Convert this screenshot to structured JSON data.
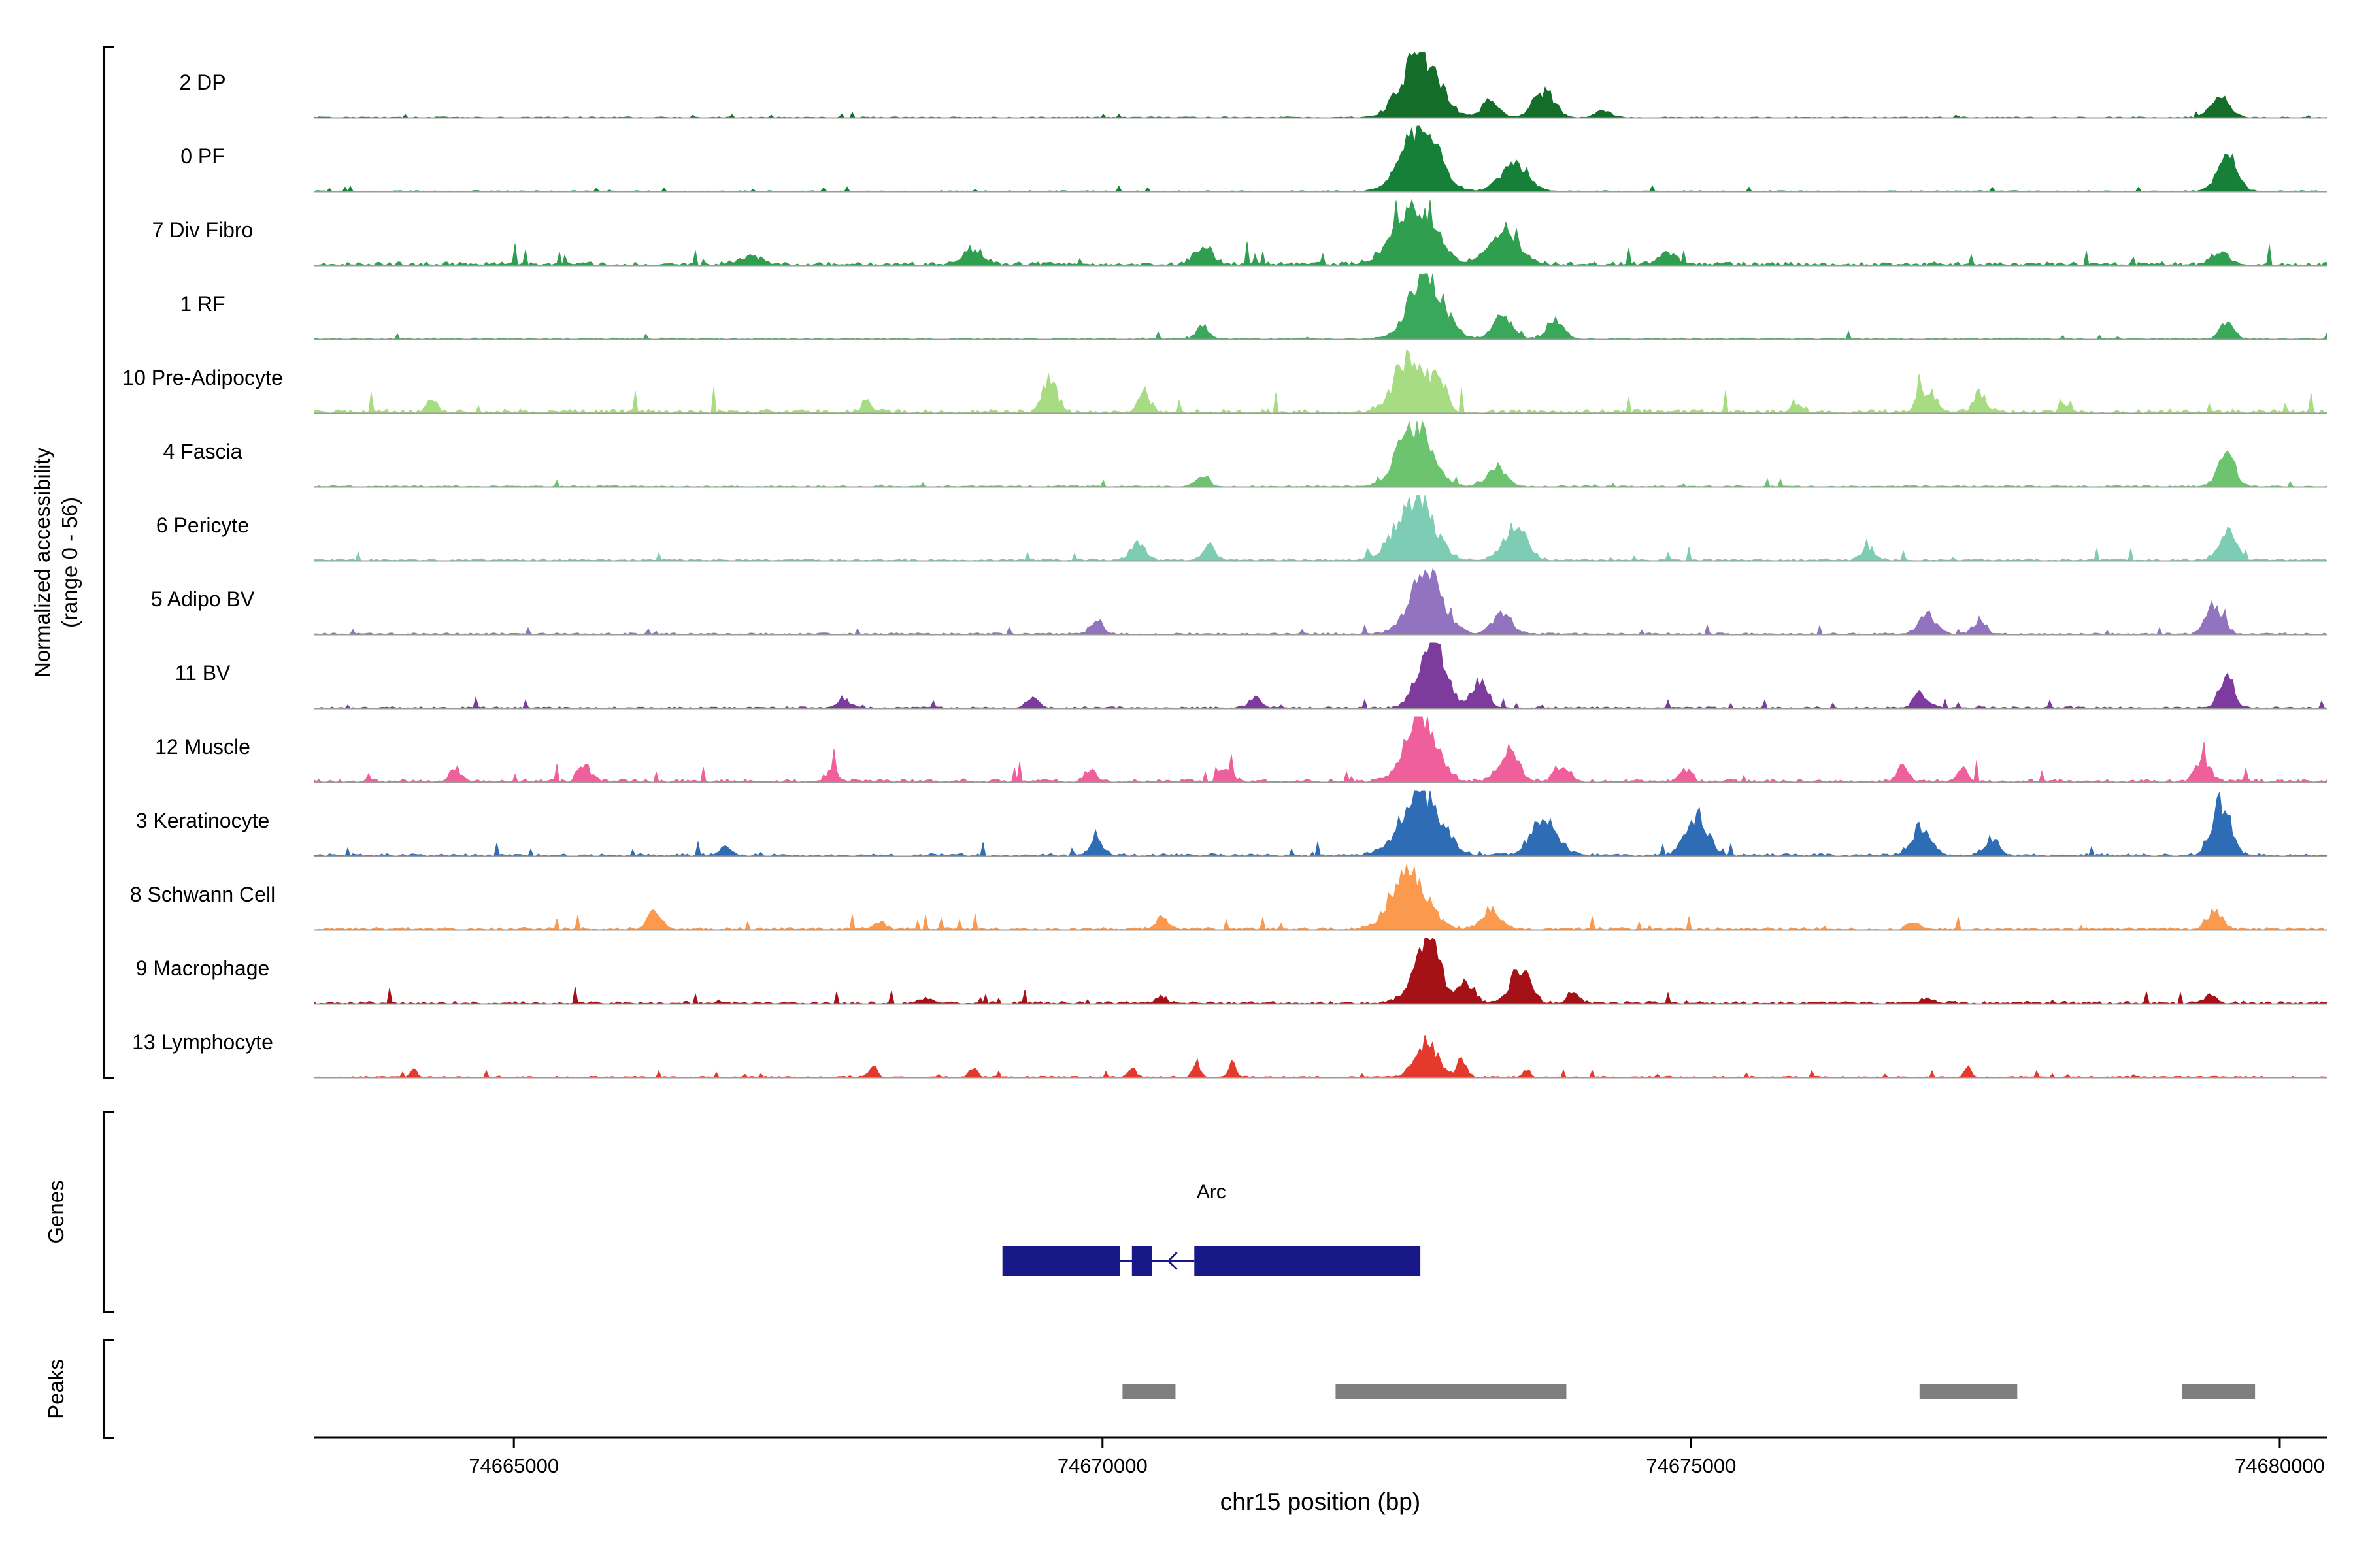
{
  "y_axis": {
    "label_line1": "Normalized accessibility",
    "label_line2": "(range 0 - 56)"
  },
  "x_axis": {
    "label": "chr15 position (bp)",
    "ticks": [
      74665000,
      74670000,
      74675000,
      74680000
    ]
  },
  "sections": {
    "genes_label": "Genes",
    "peaks_label": "Peaks"
  },
  "chart_data": {
    "type": "area",
    "x_range_bp": [
      74663300,
      74680400
    ],
    "y_range": [
      0,
      56
    ],
    "xlabel": "chr15 position (bp)",
    "tracks": [
      {
        "name": "2 DP",
        "color": "#156d2a",
        "noise": 0.02,
        "bumps": [
          [
            74672700,
            1.0,
            150
          ],
          [
            74673300,
            0.28,
            70
          ],
          [
            74673750,
            0.4,
            90
          ],
          [
            74674250,
            0.12,
            60
          ],
          [
            74679500,
            0.3,
            80
          ]
        ]
      },
      {
        "name": "0 PF",
        "color": "#168039",
        "noise": 0.02,
        "bumps": [
          [
            74672700,
            1.0,
            150
          ],
          [
            74673500,
            0.45,
            110
          ],
          [
            74679550,
            0.55,
            80
          ]
        ]
      },
      {
        "name": "7 Div Fibro",
        "color": "#2f9e4f",
        "noise": 0.09,
        "bumps": [
          [
            74672650,
            0.92,
            170
          ],
          [
            74673400,
            0.5,
            120
          ],
          [
            74670850,
            0.3,
            70
          ],
          [
            74668900,
            0.22,
            80
          ],
          [
            74667000,
            0.12,
            90
          ],
          [
            74674800,
            0.15,
            70
          ],
          [
            74679500,
            0.18,
            70
          ]
        ]
      },
      {
        "name": "1 RF",
        "color": "#3aa85a",
        "noise": 0.03,
        "bumps": [
          [
            74672750,
            1.0,
            140
          ],
          [
            74673400,
            0.32,
            80
          ],
          [
            74673850,
            0.3,
            70
          ],
          [
            74670850,
            0.2,
            50
          ],
          [
            74679550,
            0.22,
            60
          ]
        ]
      },
      {
        "name": "10 Pre-Adipocyte",
        "color": "#a8dc82",
        "noise": 0.1,
        "bumps": [
          [
            74672600,
            0.8,
            120
          ],
          [
            74672850,
            0.55,
            60
          ],
          [
            74669550,
            0.5,
            60
          ],
          [
            74670350,
            0.3,
            50
          ],
          [
            74664300,
            0.16,
            40
          ],
          [
            74668000,
            0.14,
            50
          ],
          [
            74675900,
            0.14,
            50
          ],
          [
            74677000,
            0.32,
            70
          ],
          [
            74677450,
            0.26,
            50
          ],
          [
            74678200,
            0.12,
            40
          ]
        ]
      },
      {
        "name": "4 Fascia",
        "color": "#6cc46f",
        "noise": 0.03,
        "bumps": [
          [
            74672650,
            0.92,
            140
          ],
          [
            74673350,
            0.32,
            80
          ],
          [
            74670850,
            0.18,
            50
          ],
          [
            74679550,
            0.5,
            70
          ]
        ]
      },
      {
        "name": "6 Pericyte",
        "color": "#7dccb4",
        "noise": 0.05,
        "bumps": [
          [
            74672650,
            0.95,
            150
          ],
          [
            74673500,
            0.48,
            100
          ],
          [
            74670300,
            0.28,
            60
          ],
          [
            74670900,
            0.22,
            50
          ],
          [
            74676500,
            0.16,
            60
          ],
          [
            74679550,
            0.45,
            70
          ]
        ]
      },
      {
        "name": "5 Adipo BV",
        "color": "#9173c0",
        "noise": 0.04,
        "bumps": [
          [
            74672750,
            0.9,
            140
          ],
          [
            74673400,
            0.3,
            80
          ],
          [
            74669950,
            0.22,
            50
          ],
          [
            74677000,
            0.3,
            70
          ],
          [
            74677450,
            0.22,
            50
          ],
          [
            74679450,
            0.42,
            70
          ]
        ]
      },
      {
        "name": "11 BV",
        "color": "#7d3b9e",
        "noise": 0.04,
        "bumps": [
          [
            74672800,
            1.0,
            110
          ],
          [
            74673200,
            0.4,
            70
          ],
          [
            74667800,
            0.14,
            50
          ],
          [
            74669400,
            0.18,
            50
          ],
          [
            74671300,
            0.18,
            50
          ],
          [
            74676950,
            0.22,
            60
          ],
          [
            74679550,
            0.48,
            60
          ]
        ]
      },
      {
        "name": "12 Muscle",
        "color": "#ef5f9c",
        "noise": 0.08,
        "bumps": [
          [
            74672700,
            0.95,
            130
          ],
          [
            74673450,
            0.38,
            90
          ],
          [
            74673900,
            0.25,
            60
          ],
          [
            74664500,
            0.18,
            50
          ],
          [
            74665600,
            0.22,
            50
          ],
          [
            74667700,
            0.16,
            50
          ],
          [
            74669900,
            0.18,
            50
          ],
          [
            74671050,
            0.22,
            50
          ],
          [
            74674950,
            0.18,
            50
          ],
          [
            74676800,
            0.22,
            50
          ],
          [
            74677300,
            0.16,
            50
          ],
          [
            74679350,
            0.32,
            60
          ]
        ]
      },
      {
        "name": "3 Keratinocyte",
        "color": "#2e6db5",
        "noise": 0.06,
        "bumps": [
          [
            74672700,
            1.0,
            160
          ],
          [
            74673750,
            0.52,
            110
          ],
          [
            74675050,
            0.58,
            90
          ],
          [
            74669950,
            0.22,
            60
          ],
          [
            74666800,
            0.1,
            60
          ],
          [
            74676950,
            0.42,
            80
          ],
          [
            74677550,
            0.25,
            60
          ],
          [
            74679500,
            0.8,
            80
          ]
        ]
      },
      {
        "name": "8 Schwann Cell",
        "color": "#fb9a4f",
        "noise": 0.06,
        "bumps": [
          [
            74672600,
            0.95,
            140
          ],
          [
            74673300,
            0.28,
            80
          ],
          [
            74666200,
            0.25,
            60
          ],
          [
            74670500,
            0.18,
            50
          ],
          [
            74668100,
            0.12,
            50
          ],
          [
            74676900,
            0.12,
            50
          ],
          [
            74679450,
            0.28,
            60
          ]
        ]
      },
      {
        "name": "9 Macrophage",
        "color": "#a41116",
        "noise": 0.06,
        "bumps": [
          [
            74672750,
            1.0,
            110
          ],
          [
            74673100,
            0.3,
            60
          ],
          [
            74673550,
            0.52,
            80
          ],
          [
            74674000,
            0.15,
            50
          ],
          [
            74668500,
            0.08,
            60
          ],
          [
            74670500,
            0.08,
            50
          ],
          [
            74677000,
            0.08,
            50
          ],
          [
            74679400,
            0.1,
            50
          ]
        ]
      },
      {
        "name": "13 Lymphocyte",
        "color": "#e43a2e",
        "noise": 0.03,
        "bumps": [
          [
            74672750,
            0.55,
            90
          ],
          [
            74673050,
            0.25,
            40
          ],
          [
            74664150,
            0.14,
            25
          ],
          [
            74668050,
            0.2,
            30
          ],
          [
            74668900,
            0.16,
            30
          ],
          [
            74670250,
            0.16,
            30
          ],
          [
            74670800,
            0.22,
            30
          ],
          [
            74671100,
            0.22,
            30
          ],
          [
            74673600,
            0.12,
            30
          ],
          [
            74677350,
            0.14,
            30
          ]
        ]
      }
    ],
    "gene": {
      "name": "Arc",
      "strand": "-",
      "color": "#181889",
      "exons": [
        [
          74669150,
          74670150
        ],
        [
          74670250,
          74670420
        ],
        [
          74670780,
          74672700
        ]
      ],
      "arrow_bp": 74670560
    },
    "peaks": {
      "color": "#7f7f7f",
      "intervals": [
        [
          74670170,
          74670620
        ],
        [
          74671980,
          74673940
        ],
        [
          74676940,
          74677770
        ],
        [
          74679170,
          74679790
        ]
      ]
    }
  }
}
